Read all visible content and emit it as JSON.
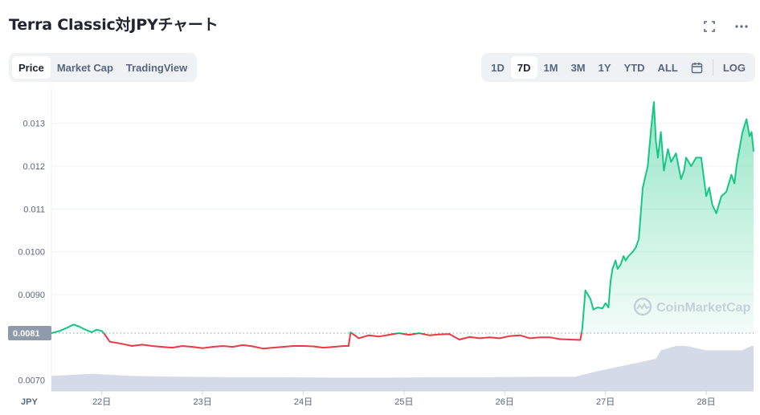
{
  "header": {
    "title": "Terra Classic対JPYチャート",
    "fullscreen_icon": "fullscreen-icon",
    "more_icon": "more-icon"
  },
  "type_tabs": [
    {
      "label": "Price",
      "active": true
    },
    {
      "label": "Market Cap",
      "active": false
    },
    {
      "label": "TradingView",
      "active": false
    }
  ],
  "range_tabs": [
    {
      "label": "1D",
      "active": false
    },
    {
      "label": "7D",
      "active": true
    },
    {
      "label": "1M",
      "active": false
    },
    {
      "label": "3M",
      "active": false
    },
    {
      "label": "1Y",
      "active": false
    },
    {
      "label": "YTD",
      "active": false
    },
    {
      "label": "ALL",
      "active": false
    }
  ],
  "calendar_icon": "calendar-icon",
  "log_label": "LOG",
  "watermark": "CoinMarketCap",
  "chart_data": {
    "type": "area",
    "currency_label": "JPY",
    "y_ticks": [
      "0.013",
      "0.012",
      "0.011",
      "0.0100",
      "0.0090",
      "0.0070"
    ],
    "y_tick_values": [
      0.013,
      0.012,
      0.011,
      0.01,
      0.009,
      0.007
    ],
    "x_ticks": [
      "22日",
      "23日",
      "24日",
      "25日",
      "26日",
      "27日",
      "28日"
    ],
    "x_tick_values": [
      22,
      23,
      24,
      25,
      26,
      27,
      28
    ],
    "xlim": [
      21.5,
      28.47
    ],
    "ylim": [
      0.00675,
      0.01382
    ],
    "reference_price": 0.0081,
    "reference_label": "0.0081",
    "colors": {
      "up": "#16c784",
      "down": "#ea3943",
      "volume": "#cfd6e4",
      "reference": "#8f9aab"
    },
    "price_series": {
      "x": [
        21.5,
        21.58,
        21.65,
        21.72,
        21.78,
        21.82,
        21.9,
        21.95,
        22.0,
        22.02,
        22.08,
        22.2,
        22.3,
        22.4,
        22.5,
        22.6,
        22.7,
        22.8,
        22.9,
        23.0,
        23.1,
        23.2,
        23.3,
        23.4,
        23.5,
        23.6,
        23.7,
        23.8,
        23.9,
        24.0,
        24.1,
        24.2,
        24.3,
        24.4,
        24.45,
        24.47,
        24.55,
        24.65,
        24.75,
        24.85,
        24.95,
        25.05,
        25.15,
        25.25,
        25.35,
        25.45,
        25.55,
        25.65,
        25.75,
        25.85,
        25.95,
        26.05,
        26.15,
        26.25,
        26.35,
        26.45,
        26.55,
        26.65,
        26.75,
        26.77,
        26.8,
        26.85,
        26.88,
        26.92,
        26.97,
        27.0,
        27.03,
        27.05,
        27.07,
        27.1,
        27.12,
        27.15,
        27.18,
        27.2,
        27.23,
        27.27,
        27.3,
        27.33,
        27.35,
        27.37,
        27.4,
        27.42,
        27.45,
        27.48,
        27.5,
        27.52,
        27.55,
        27.58,
        27.62,
        27.65,
        27.7,
        27.75,
        27.78,
        27.8,
        27.85,
        27.9,
        27.95,
        28.0,
        28.03,
        28.06,
        28.1,
        28.15,
        28.2,
        28.25,
        28.28,
        28.3,
        28.33,
        28.36,
        28.4,
        28.43,
        28.45,
        28.47
      ],
      "y": [
        0.0081,
        0.00815,
        0.00822,
        0.0083,
        0.00825,
        0.0082,
        0.00812,
        0.00818,
        0.00815,
        0.0081,
        0.0079,
        0.00785,
        0.0078,
        0.00783,
        0.0078,
        0.00778,
        0.00776,
        0.0078,
        0.00778,
        0.00775,
        0.00778,
        0.0078,
        0.00778,
        0.00782,
        0.00779,
        0.00774,
        0.00776,
        0.00778,
        0.0078,
        0.0078,
        0.00779,
        0.00776,
        0.00778,
        0.0078,
        0.0078,
        0.00812,
        0.00798,
        0.00805,
        0.00802,
        0.00806,
        0.0081,
        0.00806,
        0.0081,
        0.00805,
        0.00807,
        0.00808,
        0.00795,
        0.00801,
        0.00798,
        0.008,
        0.00798,
        0.00803,
        0.00805,
        0.00798,
        0.008,
        0.008,
        0.00796,
        0.00795,
        0.00794,
        0.0082,
        0.0091,
        0.0089,
        0.00865,
        0.0087,
        0.00868,
        0.0088,
        0.0087,
        0.0093,
        0.0096,
        0.0098,
        0.0096,
        0.0097,
        0.0099,
        0.0098,
        0.0099,
        0.01,
        0.0101,
        0.0103,
        0.0109,
        0.0115,
        0.0118,
        0.012,
        0.0128,
        0.0135,
        0.0126,
        0.0122,
        0.0128,
        0.0119,
        0.0124,
        0.0121,
        0.0123,
        0.0117,
        0.0119,
        0.0122,
        0.012,
        0.0122,
        0.0122,
        0.0113,
        0.0115,
        0.0111,
        0.0109,
        0.0113,
        0.0114,
        0.0118,
        0.0116,
        0.012,
        0.0124,
        0.0128,
        0.0131,
        0.0127,
        0.0128,
        0.01235
      ]
    },
    "volume_series": {
      "x": [
        21.5,
        21.9,
        22.3,
        22.8,
        23.3,
        23.8,
        24.3,
        24.8,
        25.3,
        25.8,
        26.3,
        26.7,
        26.9,
        27.0,
        27.1,
        27.3,
        27.5,
        27.55,
        27.7,
        27.8,
        28.0,
        28.2,
        28.35,
        28.45,
        28.47
      ],
      "y": [
        0.0071,
        0.00715,
        0.0071,
        0.00708,
        0.00707,
        0.00707,
        0.00706,
        0.00706,
        0.00707,
        0.00707,
        0.00708,
        0.00708,
        0.0072,
        0.00725,
        0.0073,
        0.0074,
        0.0075,
        0.0077,
        0.0078,
        0.0078,
        0.0077,
        0.0077,
        0.0077,
        0.0078,
        0.0078
      ]
    }
  }
}
